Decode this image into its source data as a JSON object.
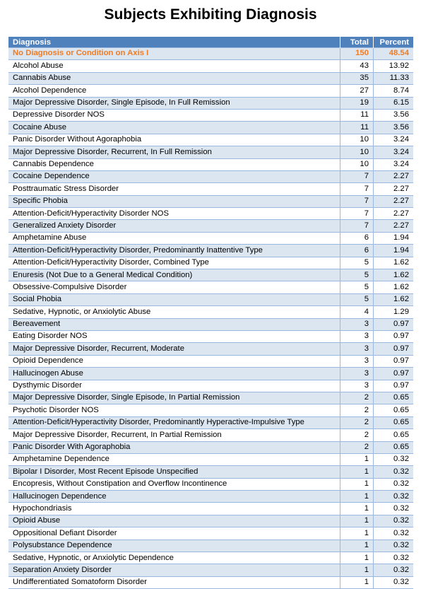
{
  "title": "Subjects Exhibiting Diagnosis",
  "columns": [
    "Diagnosis",
    "Total",
    "Percent"
  ],
  "highlight_color": "#f07b22",
  "header_color": "#4f81bd",
  "stripe_color": "#dce6f1",
  "rows": [
    {
      "diagnosis": "No Diagnosis or Condition on Axis I",
      "total": "150",
      "percent": "48.54",
      "highlight": true
    },
    {
      "diagnosis": "Alcohol Abuse",
      "total": "43",
      "percent": "13.92"
    },
    {
      "diagnosis": "Cannabis Abuse",
      "total": "35",
      "percent": "11.33"
    },
    {
      "diagnosis": "Alcohol Dependence",
      "total": "27",
      "percent": "8.74"
    },
    {
      "diagnosis": "Major Depressive Disorder, Single Episode, In Full Remission",
      "total": "19",
      "percent": "6.15"
    },
    {
      "diagnosis": "Depressive Disorder NOS",
      "total": "11",
      "percent": "3.56"
    },
    {
      "diagnosis": "Cocaine Abuse",
      "total": "11",
      "percent": "3.56"
    },
    {
      "diagnosis": "Panic Disorder Without Agoraphobia",
      "total": "10",
      "percent": "3.24"
    },
    {
      "diagnosis": "Major Depressive Disorder, Recurrent, In Full Remission",
      "total": "10",
      "percent": "3.24"
    },
    {
      "diagnosis": "Cannabis Dependence",
      "total": "10",
      "percent": "3.24"
    },
    {
      "diagnosis": "Cocaine Dependence",
      "total": "7",
      "percent": "2.27"
    },
    {
      "diagnosis": "Posttraumatic Stress Disorder",
      "total": "7",
      "percent": "2.27"
    },
    {
      "diagnosis": "Specific Phobia",
      "total": "7",
      "percent": "2.27"
    },
    {
      "diagnosis": "Attention-Deficit/Hyperactivity Disorder NOS",
      "total": "7",
      "percent": "2.27"
    },
    {
      "diagnosis": "Generalized Anxiety Disorder",
      "total": "7",
      "percent": "2.27"
    },
    {
      "diagnosis": "Amphetamine Abuse",
      "total": "6",
      "percent": "1.94"
    },
    {
      "diagnosis": "Attention-Deficit/Hyperactivity Disorder, Predominantly Inattentive Type",
      "total": "6",
      "percent": "1.94"
    },
    {
      "diagnosis": "Attention-Deficit/Hyperactivity Disorder, Combined Type",
      "total": "5",
      "percent": "1.62"
    },
    {
      "diagnosis": "Enuresis (Not Due to a General Medical Condition)",
      "total": "5",
      "percent": "1.62"
    },
    {
      "diagnosis": "Obsessive-Compulsive Disorder",
      "total": "5",
      "percent": "1.62"
    },
    {
      "diagnosis": "Social Phobia",
      "total": "5",
      "percent": "1.62"
    },
    {
      "diagnosis": "Sedative, Hypnotic, or Anxiolytic Abuse",
      "total": "4",
      "percent": "1.29"
    },
    {
      "diagnosis": "Bereavement",
      "total": "3",
      "percent": "0.97"
    },
    {
      "diagnosis": "Eating Disorder NOS",
      "total": "3",
      "percent": "0.97"
    },
    {
      "diagnosis": "Major Depressive Disorder, Recurrent, Moderate",
      "total": "3",
      "percent": "0.97"
    },
    {
      "diagnosis": "Opioid Dependence",
      "total": "3",
      "percent": "0.97"
    },
    {
      "diagnosis": "Hallucinogen Abuse",
      "total": "3",
      "percent": "0.97"
    },
    {
      "diagnosis": "Dysthymic Disorder",
      "total": "3",
      "percent": "0.97"
    },
    {
      "diagnosis": "Major Depressive Disorder, Single Episode, In Partial Remission",
      "total": "2",
      "percent": "0.65"
    },
    {
      "diagnosis": "Psychotic Disorder NOS",
      "total": "2",
      "percent": "0.65"
    },
    {
      "diagnosis": "Attention-Deficit/Hyperactivity Disorder, Predominantly Hyperactive-Impulsive Type",
      "total": "2",
      "percent": "0.65"
    },
    {
      "diagnosis": "Major Depressive Disorder, Recurrent, In Partial Remission",
      "total": "2",
      "percent": "0.65"
    },
    {
      "diagnosis": "Panic Disorder With Agoraphobia",
      "total": "2",
      "percent": "0.65"
    },
    {
      "diagnosis": "Amphetamine Dependence",
      "total": "1",
      "percent": "0.32"
    },
    {
      "diagnosis": "Bipolar I Disorder, Most Recent Episode Unspecified",
      "total": "1",
      "percent": "0.32"
    },
    {
      "diagnosis": "Encopresis, Without Constipation and Overflow Incontinence",
      "total": "1",
      "percent": "0.32"
    },
    {
      "diagnosis": "Hallucinogen Dependence",
      "total": "1",
      "percent": "0.32"
    },
    {
      "diagnosis": "Hypochondriasis",
      "total": "1",
      "percent": "0.32"
    },
    {
      "diagnosis": "Opioid Abuse",
      "total": "1",
      "percent": "0.32"
    },
    {
      "diagnosis": "Oppositional Defiant Disorder",
      "total": "1",
      "percent": "0.32"
    },
    {
      "diagnosis": "Polysubstance Dependence",
      "total": "1",
      "percent": "0.32"
    },
    {
      "diagnosis": "Sedative, Hypnotic, or Anxiolytic Dependence",
      "total": "1",
      "percent": "0.32"
    },
    {
      "diagnosis": "Separation Anxiety Disorder",
      "total": "1",
      "percent": "0.32"
    },
    {
      "diagnosis": "Undifferentiated Somatoform Disorder",
      "total": "1",
      "percent": "0.32"
    }
  ]
}
